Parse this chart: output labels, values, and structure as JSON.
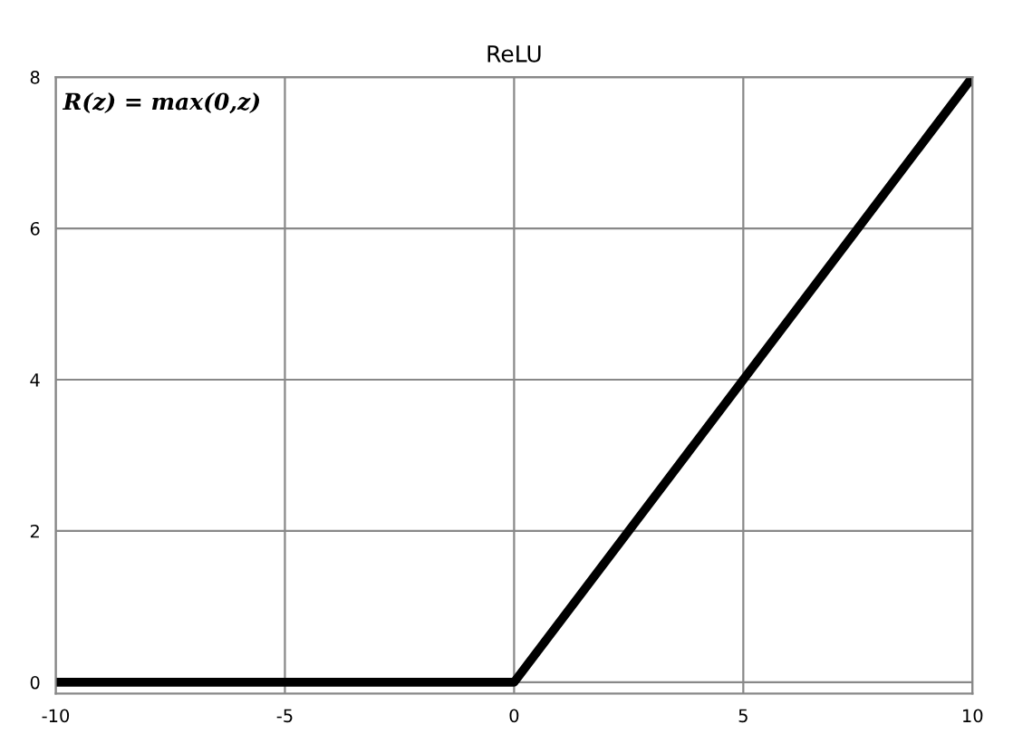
{
  "chart_data": {
    "type": "line",
    "title": "ReLU",
    "x": [
      -10,
      0,
      10
    ],
    "series": [
      {
        "color": "#000000",
        "values": [
          0,
          0,
          8
        ]
      }
    ],
    "xlim": [
      -10,
      10
    ],
    "ylim": [
      -0.15,
      8
    ],
    "xticks": [
      {
        "value": -10,
        "label": "-10"
      },
      {
        "value": -5,
        "label": "-5"
      },
      0,
      5,
      10
    ],
    "yticks": [
      0,
      2,
      4,
      6,
      8
    ],
    "grid": true,
    "marker": "none",
    "line_style": "solid",
    "legend": false,
    "annotations": [
      "R(z) = max(0,z)"
    ]
  }
}
